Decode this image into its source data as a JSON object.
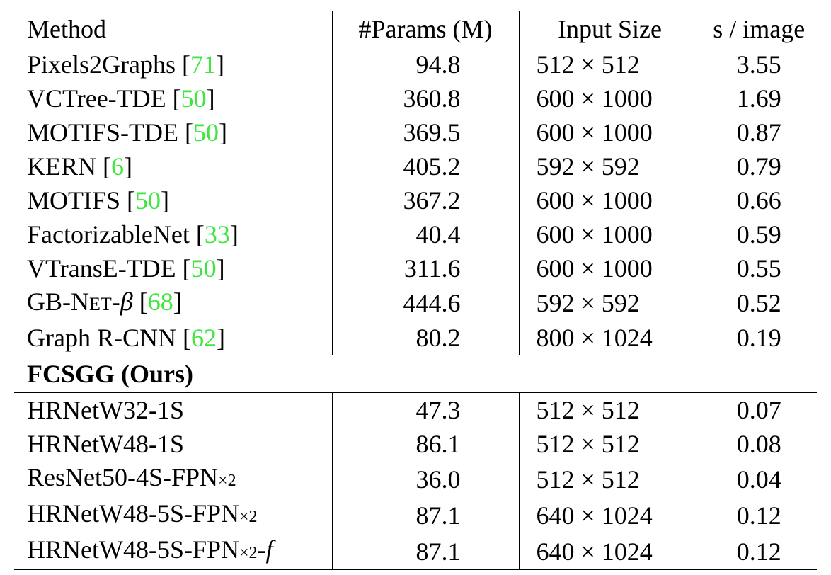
{
  "table": {
    "headers": [
      "Method",
      "#Params (M)",
      "Input Size",
      "s / image"
    ],
    "baselines": [
      {
        "method": "Pixels2Graphs",
        "cite": "71",
        "params": "94.8",
        "size": "512 × 512",
        "time": "3.55"
      },
      {
        "method": "VCTree-TDE",
        "cite": "50",
        "params": "360.8",
        "size": "600 × 1000",
        "time": "1.69"
      },
      {
        "method": "MOTIFS-TDE",
        "cite": "50",
        "params": "369.5",
        "size": "600 × 1000",
        "time": "0.87"
      },
      {
        "method": "KERN",
        "cite": "6",
        "params": "405.2",
        "size": "592 × 592",
        "time": "0.79"
      },
      {
        "method": "MOTIFS",
        "cite": "50",
        "params": "367.2",
        "size": "600 × 1000",
        "time": "0.66"
      },
      {
        "method": "FactorizableNet",
        "cite": "33",
        "params": "40.4",
        "size": "600 × 1000",
        "time": "0.59"
      },
      {
        "method": "VTransE-TDE",
        "cite": "50",
        "params": "311.6",
        "size": "600 × 1000",
        "time": "0.55"
      },
      {
        "method_pre": "GB-N",
        "method_sc": "ET",
        "method_post": "-β",
        "cite": "68",
        "params": "444.6",
        "size": "592 × 592",
        "time": "0.52"
      },
      {
        "method": "Graph R-CNN",
        "cite": "62",
        "params": "80.2",
        "size": "800 × 1024",
        "time": "0.19"
      }
    ],
    "section_label": "FCSGG",
    "section_suffix": "Ours",
    "ours": [
      {
        "method": "HRNetW32-1S",
        "params": "47.3",
        "size": "512 × 512",
        "time": "0.07"
      },
      {
        "method": "HRNetW48-1S",
        "params": "86.1",
        "size": "512 × 512",
        "time": "0.08"
      },
      {
        "method": "ResNet50-4S-FPN",
        "sub": "×2",
        "post": "",
        "params": "36.0",
        "size": "512 × 512",
        "time": "0.04"
      },
      {
        "method": "HRNetW48-5S-FPN",
        "sub": "×2",
        "post": "",
        "params": "87.1",
        "size": "640 × 1024",
        "time": "0.12"
      },
      {
        "method": "HRNetW48-5S-FPN",
        "sub": "×2",
        "post": "-f",
        "params": "87.1",
        "size": "640 × 1024",
        "time": "0.12"
      }
    ]
  }
}
